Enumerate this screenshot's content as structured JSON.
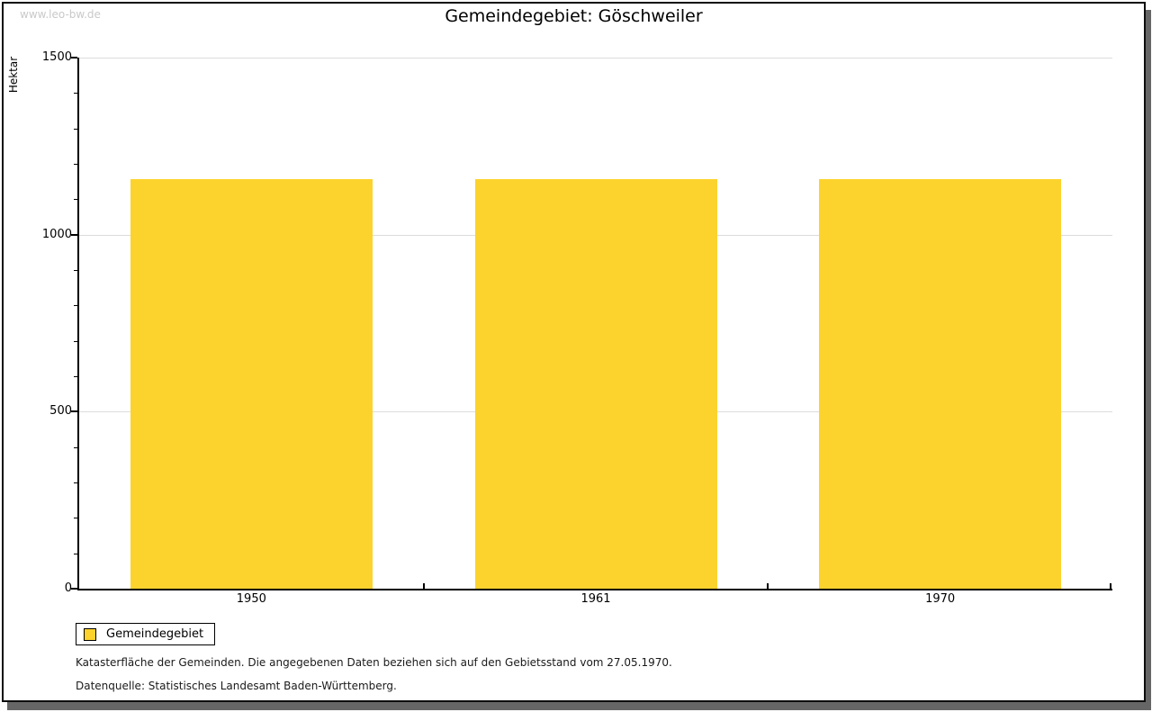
{
  "watermark": "www.leo-bw.de",
  "title": "Gemeindegebiet: Göschweiler",
  "chart_data": {
    "type": "bar",
    "title": "Gemeindegebiet: Göschweiler",
    "categories": [
      "1950",
      "1961",
      "1970"
    ],
    "series": [
      {
        "name": "Gemeindegebiet",
        "values": [
          1158,
          1158,
          1158
        ]
      }
    ],
    "xlabel": "",
    "ylabel": "Hektar",
    "ylim": [
      0,
      1500
    ],
    "yticks": [
      0,
      500,
      1000,
      1500
    ],
    "minor_tick_step": 100,
    "grid": true,
    "legend_position": "bottom-left",
    "bar_color": "#fcd32d"
  },
  "legend": {
    "items": [
      {
        "label": "Gemeindegebiet",
        "color": "#fcd32d"
      }
    ]
  },
  "footer": {
    "line1": "Katasterfläche der Gemeinden. Die angegebenen Daten beziehen sich auf den Gebietsstand vom 27.05.1970.",
    "line2": "Datenquelle: Statistisches Landesamt Baden-Württemberg."
  },
  "colors": {
    "bar": "#fcd32d",
    "gridline": "#dcdcdc",
    "axis": "#000000",
    "watermark_text": "#c9c9c9",
    "frame_border": "#0d0d0d",
    "frame_shadow": "#666666",
    "background": "#ffffff"
  }
}
